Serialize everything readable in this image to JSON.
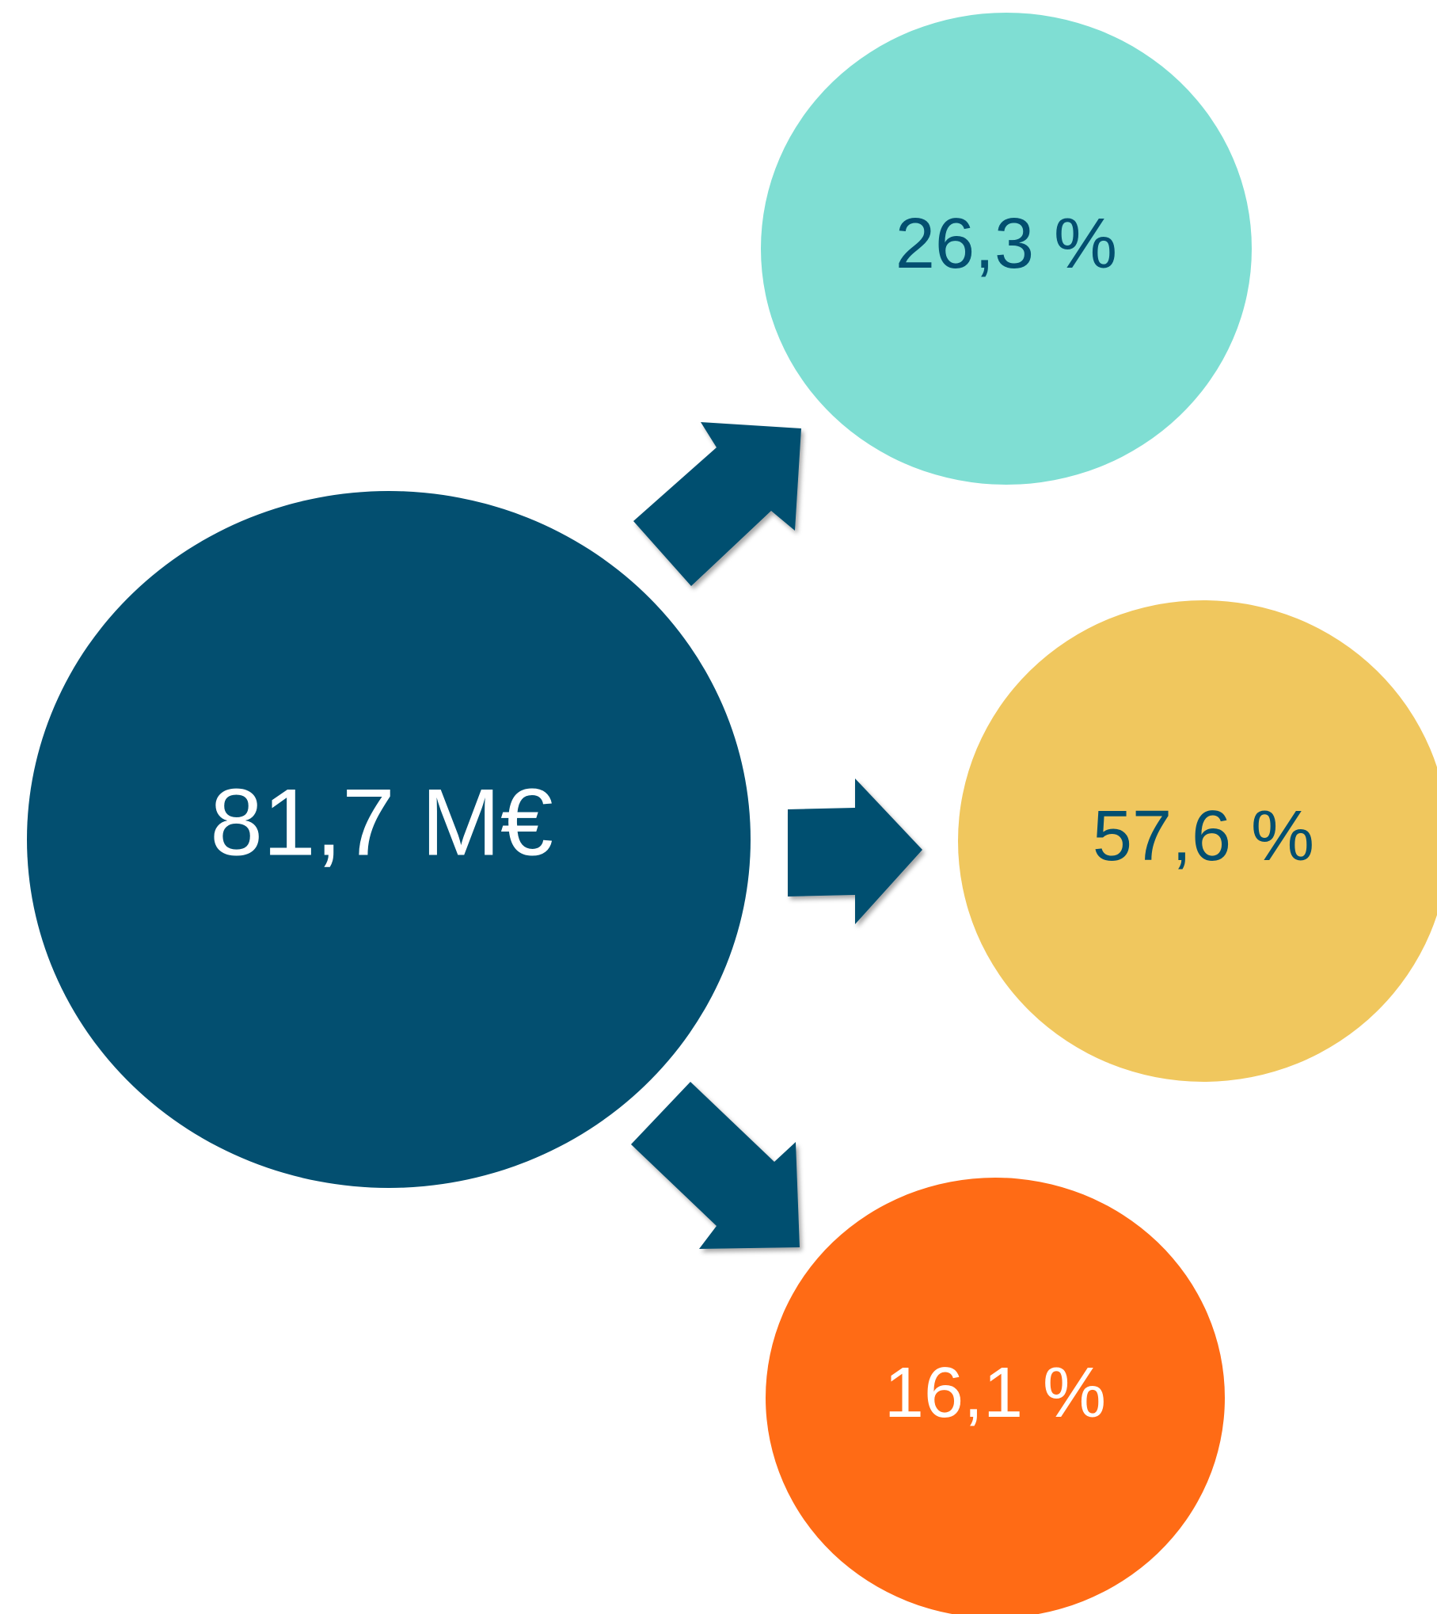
{
  "colors": {
    "background": "#ffffff",
    "source": "#034f70",
    "teal": "#7fded3",
    "yellow": "#f0c75e",
    "orange": "#ff6b15",
    "arrow": "#034f70",
    "text_light": "#ffffff",
    "text_dark": "#034f70"
  },
  "source": {
    "label": "81,7 M€"
  },
  "targets": [
    {
      "label": "26,3 %",
      "color_key": "teal"
    },
    {
      "label": "57,6 %",
      "color_key": "yellow"
    },
    {
      "label": "16,1 %",
      "color_key": "orange"
    }
  ],
  "arrows": [
    {
      "direction": "up-right",
      "icon": "arrow-up-right-icon"
    },
    {
      "direction": "right",
      "icon": "arrow-right-icon"
    },
    {
      "direction": "down-right",
      "icon": "arrow-down-right-icon"
    }
  ]
}
